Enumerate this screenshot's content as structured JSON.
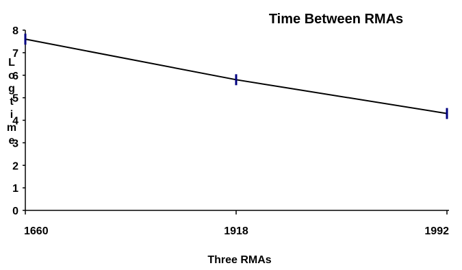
{
  "chart_data": {
    "type": "line",
    "title": "Time Between RMAs",
    "xlabel": "Three RMAs",
    "ylabel": "Log time",
    "categories": [
      "1660",
      "1918",
      "1992"
    ],
    "series": [
      {
        "values": [
          7.6,
          5.8,
          4.3
        ]
      }
    ],
    "ylim": [
      0,
      8
    ],
    "yticks": [
      "0",
      "1",
      "2",
      "3",
      "4",
      "5",
      "6",
      "7",
      "8"
    ],
    "grid": false,
    "legend": "none",
    "line_color": "#000000",
    "marker_color": "#000080",
    "marker": "vertical-dash"
  }
}
